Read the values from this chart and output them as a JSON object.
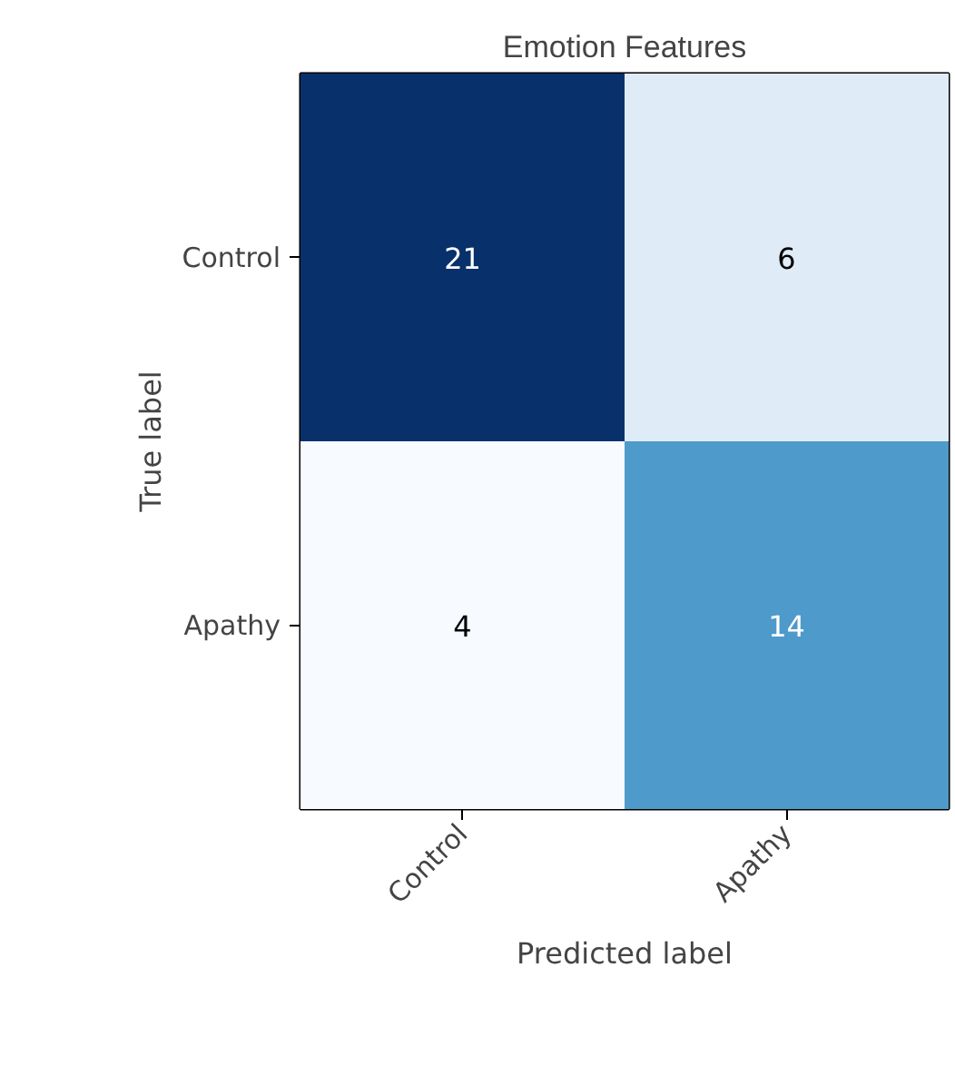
{
  "chart_data": {
    "type": "heatmap",
    "title": "Emotion Features",
    "xlabel": "Predicted label",
    "ylabel": "True label",
    "categories": [
      "Control",
      "Apathy"
    ],
    "y_categories": [
      "Control",
      "Apathy"
    ],
    "cells": [
      [
        21,
        6
      ],
      [
        4,
        14
      ]
    ],
    "data_labels": true
  }
}
